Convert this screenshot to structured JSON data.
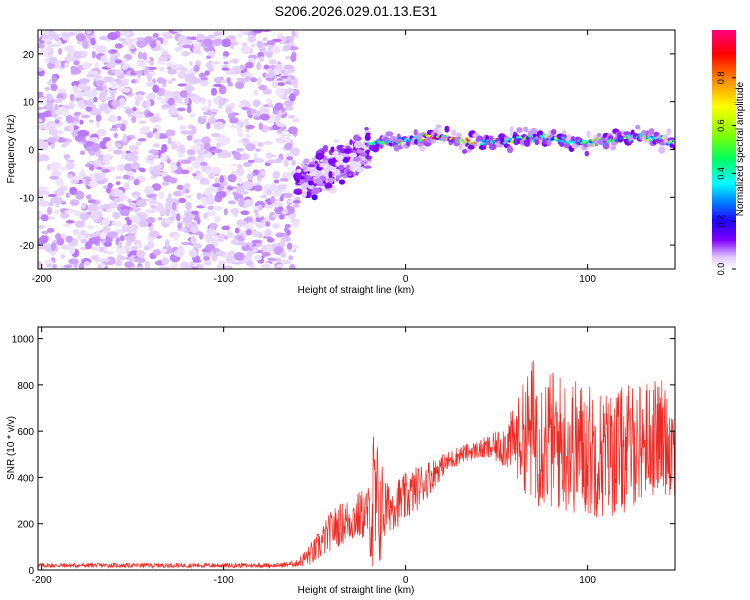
{
  "title": "S206.2026.029.01.13.E31",
  "chart_data": [
    {
      "type": "heatmap",
      "xlabel": "Height of straight line (km)",
      "ylabel": "Frequency (Hz)",
      "xlim": [
        -202,
        148
      ],
      "ylim": [
        -25,
        25
      ],
      "xticks": [
        -200,
        -100,
        0,
        100
      ],
      "yticks": [
        -20,
        -10,
        0,
        10,
        20
      ],
      "colorbar": {
        "label": "Normalized spectral amplitude",
        "range": [
          0,
          1
        ],
        "ticks": [
          "0.0",
          "0.2",
          "0.4",
          "0.6",
          "0.8"
        ],
        "tick_values": [
          0,
          0.2,
          0.4,
          0.6,
          0.8
        ],
        "colors": [
          "#ffffff",
          "#e0c8ff",
          "#8000ff",
          "#2000ff",
          "#0080ff",
          "#00ffff",
          "#00ff60",
          "#80ff00",
          "#ffff00",
          "#ff8000",
          "#ff0000",
          "#ff0080"
        ]
      },
      "features": {
        "noise_region_x": [
          -202,
          -60
        ],
        "noise_frequency_range": [
          -25,
          25
        ],
        "transition_x": [
          -60,
          -20
        ],
        "transition_peak": {
          "x": -50,
          "y": -10
        },
        "signal_start_x": -15,
        "signal_center_freq": 2,
        "signal_peak_segment_x": [
          10,
          40
        ],
        "signal_end_x": 148
      }
    },
    {
      "type": "line",
      "xlabel": "Height of straight line (km)",
      "ylabel": "SNR (10 * v/v)",
      "xlim": [
        -202,
        148
      ],
      "ylim": [
        0,
        1050
      ],
      "xticks": [
        -200,
        -100,
        0,
        100
      ],
      "yticks": [
        0,
        200,
        400,
        600,
        800,
        1000
      ],
      "series": [
        {
          "name": "SNR",
          "color": "#ee2a24",
          "envelope_x": [
            -202,
            -70,
            -60,
            -50,
            -40,
            -30,
            -20,
            -18,
            -10,
            0,
            10,
            20,
            30,
            40,
            50,
            60,
            70,
            80,
            90,
            100,
            110,
            120,
            130,
            140,
            148
          ],
          "envelope_mean": [
            20,
            20,
            28,
            80,
            180,
            220,
            250,
            250,
            270,
            310,
            380,
            450,
            500,
            520,
            530,
            560,
            600,
            560,
            540,
            520,
            500,
            520,
            560,
            580,
            540
          ],
          "envelope_spread": [
            10,
            10,
            15,
            60,
            90,
            100,
            120,
            400,
            110,
            110,
            90,
            50,
            40,
            40,
            70,
            150,
            330,
            310,
            300,
            300,
            280,
            280,
            260,
            250,
            230
          ]
        }
      ]
    }
  ]
}
